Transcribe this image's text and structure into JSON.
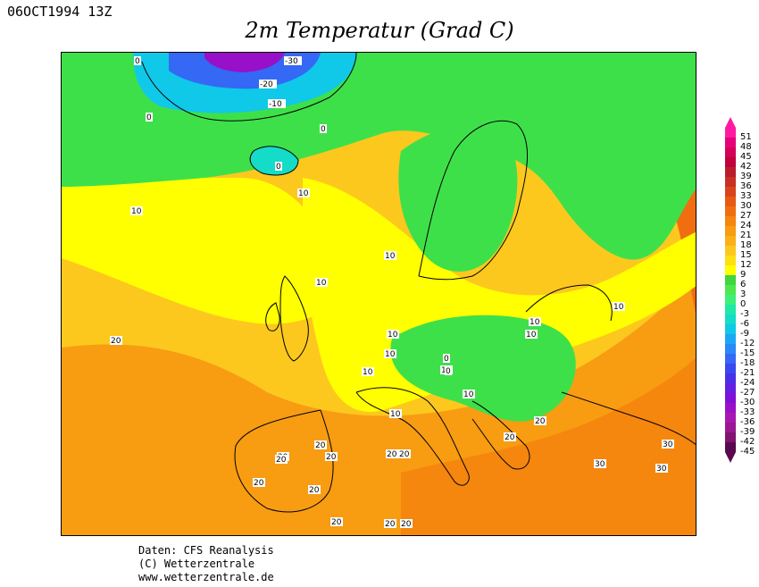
{
  "header": {
    "timestamp": "06OCT1994 13Z",
    "title": "2m Temperatur (Grad C)"
  },
  "footer": {
    "line1": "Daten: CFS Reanalysis",
    "line2": "(C) Wetterzentrale",
    "line3": "www.wetterzentrale.de"
  },
  "legend": {
    "levels": [
      {
        "label": "51",
        "color": "#ff1aa0"
      },
      {
        "label": "48",
        "color": "#e8007a"
      },
      {
        "label": "45",
        "color": "#d40058"
      },
      {
        "label": "42",
        "color": "#c0003c"
      },
      {
        "label": "39",
        "color": "#b81e2a"
      },
      {
        "label": "36",
        "color": "#c83024"
      },
      {
        "label": "33",
        "color": "#d8441c"
      },
      {
        "label": "30",
        "color": "#e85a14"
      },
      {
        "label": "27",
        "color": "#f06e10"
      },
      {
        "label": "24",
        "color": "#f5860e"
      },
      {
        "label": "21",
        "color": "#f89c12"
      },
      {
        "label": "18",
        "color": "#fbb018"
      },
      {
        "label": "15",
        "color": "#fcc81e"
      },
      {
        "label": "12",
        "color": "#fde012"
      },
      {
        "label": "9",
        "color": "#ffff00"
      },
      {
        "label": "6",
        "color": "#3fd640"
      },
      {
        "label": "3",
        "color": "#50e650"
      },
      {
        "label": "0",
        "color": "#3ef07a"
      },
      {
        "label": "-3",
        "color": "#1fe8a8"
      },
      {
        "label": "-6",
        "color": "#14dcc8"
      },
      {
        "label": "-9",
        "color": "#10c8e8"
      },
      {
        "label": "-12",
        "color": "#1aa8f5"
      },
      {
        "label": "-15",
        "color": "#2a88f8"
      },
      {
        "label": "-18",
        "color": "#3468f5"
      },
      {
        "label": "-21",
        "color": "#3a48f0"
      },
      {
        "label": "-24",
        "color": "#4a30e8"
      },
      {
        "label": "-27",
        "color": "#6420e0"
      },
      {
        "label": "-30",
        "color": "#8010d8"
      },
      {
        "label": "-33",
        "color": "#9810c8"
      },
      {
        "label": "-36",
        "color": "#a818b0"
      },
      {
        "label": "-39",
        "color": "#9a1890"
      },
      {
        "label": "-42",
        "color": "#801470"
      },
      {
        "label": "-45",
        "color": "#5a0850"
      }
    ]
  },
  "contour_labels": [
    "-30",
    "-20",
    "-10",
    "0",
    "0",
    "0",
    "0",
    "10",
    "10",
    "10",
    "10",
    "10",
    "10",
    "10",
    "10",
    "10",
    "10",
    "10",
    "10",
    "10",
    "20",
    "20",
    "20",
    "20",
    "20",
    "20",
    "20",
    "20",
    "20",
    "20",
    "20",
    "20",
    "20",
    "20",
    "30",
    "30",
    "30",
    "0",
    "0"
  ],
  "colors": {
    "green": "#3ee04a",
    "yellow": "#ffff00",
    "lightorange": "#fcc81e",
    "orange": "#f89c12",
    "darkorange": "#f06e10"
  }
}
